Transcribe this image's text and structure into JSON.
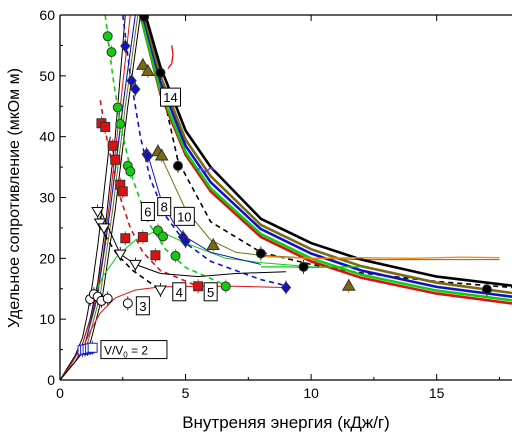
{
  "chart_data": {
    "type": "line",
    "title": "",
    "xlabel": "Внутреняя энергия (кДж/г)",
    "ylabel": "Удельное сопротивление (мкОм м)",
    "xlim": [
      0,
      18
    ],
    "ylim": [
      0,
      60
    ],
    "xticks": [
      "0",
      "5",
      "10",
      "15"
    ],
    "yticks": [
      "0",
      "10",
      "20",
      "30",
      "40",
      "50",
      "60"
    ],
    "grid": false,
    "legend": "none",
    "labels": [
      "2",
      "3",
      "4",
      "5",
      "6",
      "8",
      "10",
      "14"
    ],
    "label_prefix": "V/V",
    "label_subscript": "0",
    "label_suffix": " = 2",
    "series": [
      {
        "label": "2",
        "color": "#1f1fcc",
        "marker": "square-open",
        "x": [
          0.9,
          1.0,
          1.1,
          1.2,
          1.3
        ],
        "y": [
          4.9,
          5.0,
          5.1,
          5.2,
          5.3
        ]
      },
      {
        "label": "3",
        "color": "#000000",
        "marker": "circle-open",
        "x": [
          1.2,
          1.35,
          1.5,
          1.65,
          1.9,
          2.7
        ],
        "y": [
          13.3,
          14.1,
          13.7,
          13.0,
          13.4,
          12.6
        ]
      },
      {
        "label": "4",
        "color": "#000000",
        "marker": "triangle-down-open",
        "x": [
          1.5,
          1.6,
          1.75,
          2.4,
          3.0,
          4.0
        ],
        "y": [
          27.7,
          25.8,
          25.0,
          20.7,
          19.0,
          14.8
        ]
      },
      {
        "label": "5",
        "color": "#dd1111",
        "marker": "square",
        "x": [
          1.65,
          1.8,
          2.1,
          2.2,
          2.4,
          2.5,
          2.6,
          3.3,
          3.8,
          5.5
        ],
        "y": [
          42.2,
          41.6,
          38.5,
          36.2,
          32.1,
          31.0,
          23.3,
          23.5,
          20.5,
          15.4
        ]
      },
      {
        "label": "6",
        "color": "#11cc11",
        "marker": "circle",
        "x": [
          1.9,
          2.05,
          2.3,
          2.4,
          2.7,
          2.8,
          3.9,
          4.1,
          4.6,
          6.6
        ],
        "y": [
          56.5,
          53.9,
          44.8,
          42.1,
          35.2,
          34.3,
          24.6,
          23.6,
          20.4,
          15.4
        ]
      },
      {
        "label": "8",
        "color": "#1111cc",
        "marker": "diamond",
        "x": [
          2.6,
          2.85,
          3.0,
          3.45,
          3.5,
          4.9,
          5.0,
          9.0
        ],
        "y": [
          54.9,
          49.2,
          47.8,
          37.1,
          36.8,
          23.5,
          22.8,
          15.2
        ]
      },
      {
        "label": "10",
        "color": "#7a6a10",
        "marker": "triangle",
        "x": [
          3.3,
          3.5,
          3.9,
          4.05,
          6.1,
          11.5
        ],
        "y": [
          51.8,
          50.8,
          37.6,
          36.9,
          22.2,
          15.5
        ]
      },
      {
        "label": "14",
        "color": "#000000",
        "marker": "circle",
        "x": [
          3.35,
          4.0,
          4.7,
          8.0,
          9.7,
          17.0
        ],
        "y": [
          59.7,
          50.5,
          35.2,
          20.8,
          18.6,
          14.9
        ]
      }
    ],
    "fit_curves": [
      {
        "color": "#dd1111",
        "x": [
          3.2,
          4,
          5,
          6,
          8,
          10,
          12,
          15,
          18
        ],
        "y": [
          60,
          47,
          37,
          31,
          23.5,
          19.5,
          16.8,
          14.2,
          12.6
        ]
      },
      {
        "color": "#11cc11",
        "x": [
          3.2,
          4,
          5,
          6,
          8,
          10,
          12,
          15,
          18
        ],
        "y": [
          60,
          47.5,
          37.5,
          31.5,
          24,
          20,
          17.3,
          14.7,
          13.1
        ]
      },
      {
        "color": "#1111cc",
        "x": [
          3.3,
          4,
          5,
          6,
          8,
          10,
          12,
          15,
          18
        ],
        "y": [
          60,
          49,
          38.5,
          32.5,
          24.8,
          20.8,
          18,
          15.3,
          13.7
        ]
      },
      {
        "color": "#7a6a10",
        "x": [
          3.35,
          4,
          5,
          6,
          8,
          10,
          12,
          15,
          18
        ],
        "y": [
          60,
          50,
          39.5,
          33.5,
          25.5,
          21.5,
          18.7,
          16,
          14.3
        ]
      },
      {
        "color": "#000000",
        "x": [
          3.4,
          4,
          5,
          6,
          8,
          10,
          12,
          15,
          18
        ],
        "y": [
          60,
          51.5,
          41,
          35,
          26.5,
          22.5,
          19.8,
          17,
          15.5
        ]
      }
    ],
    "dashed_curves": [
      {
        "color": "#000000",
        "x": [
          3.3,
          3.6,
          4.0,
          4.7,
          6,
          8,
          10,
          12,
          15,
          18
        ],
        "y": [
          60,
          55,
          49,
          36,
          26,
          21,
          19,
          17.6,
          16.2,
          15.2
        ]
      },
      {
        "color": "#1111cc",
        "x": [
          2.5,
          2.8,
          3.2,
          3.6,
          4.2,
          5,
          6,
          8,
          9
        ],
        "y": [
          60,
          50,
          40,
          33,
          27,
          22.5,
          19.5,
          16.5,
          15.5
        ]
      },
      {
        "color": "#11cc11",
        "x": [
          1.8,
          2.1,
          2.4,
          2.9,
          3.5,
          4.2,
          5,
          6.6
        ],
        "y": [
          60,
          50,
          42,
          33,
          26,
          21.5,
          18.5,
          15.6
        ]
      },
      {
        "color": "#dd1111",
        "x": [
          1.6,
          1.85,
          2.1,
          2.4,
          2.8,
          3.3,
          4,
          5.5
        ],
        "y": [
          46,
          40,
          35,
          30,
          25,
          21,
          18,
          15.4
        ]
      },
      {
        "color": "#000000",
        "x": [
          1.4,
          1.6,
          1.9,
          2.3,
          2.9,
          4.0
        ],
        "y": [
          28,
          25.5,
          23,
          20.5,
          18,
          14.8
        ]
      }
    ],
    "rise_curves": [
      {
        "color": "#000000",
        "x": [
          0,
          0.3,
          0.6,
          0.9,
          1.1,
          1.3,
          1.5,
          1.7,
          2.0
        ],
        "y": [
          0,
          2,
          4,
          7,
          11,
          16,
          22,
          29,
          40
        ]
      },
      {
        "color": "#000000",
        "x": [
          0,
          0.5,
          0.9,
          1.2,
          1.5,
          1.8,
          2.2,
          2.6
        ],
        "y": [
          0,
          3,
          6,
          10,
          16,
          25,
          40,
          60
        ]
      },
      {
        "color": "#dd1111",
        "x": [
          0,
          0.5,
          0.9,
          1.3,
          1.7,
          2.0,
          2.4,
          2.8
        ],
        "y": [
          0,
          3,
          6,
          11,
          20,
          30,
          45,
          60
        ]
      },
      {
        "color": "#11cc11",
        "x": [
          0,
          0.6,
          1.0,
          1.4,
          1.8,
          2.2,
          2.6,
          3.0
        ],
        "y": [
          0,
          3,
          6,
          12,
          22,
          34,
          48,
          60
        ]
      },
      {
        "color": "#1111cc",
        "x": [
          0,
          0.6,
          1.0,
          1.5,
          2.0,
          2.5,
          3.0
        ],
        "y": [
          0,
          3,
          6,
          14,
          28,
          45,
          60
        ]
      },
      {
        "color": "#7a6a10",
        "x": [
          0,
          0.6,
          1.1,
          1.6,
          2.1,
          2.6,
          3.1
        ],
        "y": [
          0,
          3,
          6,
          14,
          28,
          45,
          60
        ]
      },
      {
        "color": "#000000",
        "x": [
          0,
          0.6,
          1.2,
          1.7,
          2.2,
          2.7,
          3.2
        ],
        "y": [
          0,
          3,
          6,
          14,
          28,
          45,
          60
        ]
      }
    ],
    "plateau_curves": [
      {
        "color": "#dd1111",
        "x": [
          0.9,
          1.2,
          1.6,
          2.2,
          3,
          4,
          5.5,
          7,
          9
        ],
        "y": [
          5,
          8,
          11,
          13.5,
          14.8,
          15.3,
          15.4,
          15.4,
          15.2
        ]
      },
      {
        "color": "#11cc11",
        "x": [
          1.3,
          1.7,
          2.3,
          3,
          3.9,
          5,
          6.6,
          8,
          10,
          12
        ],
        "y": [
          13,
          17,
          20.5,
          23,
          24.6,
          22.5,
          20,
          19.3,
          18.6,
          18.6
        ]
      },
      {
        "color": "#1111cc",
        "x": [
          3.5,
          4,
          4.5,
          5,
          6,
          8
        ],
        "y": [
          37,
          30,
          26,
          23.5,
          21,
          19
        ]
      },
      {
        "color": "#7a6a10",
        "x": [
          4.0,
          5,
          6,
          7,
          8,
          10,
          12,
          17.5
        ],
        "y": [
          37,
          28,
          23,
          21,
          20.5,
          20,
          19.8,
          19.8
        ]
      },
      {
        "color": "#000000",
        "x": [
          1.6,
          2.4,
          3.0,
          4.0,
          5.5,
          7,
          9
        ],
        "y": [
          28,
          20.7,
          19,
          17.5,
          17,
          17.5,
          17.8
        ]
      }
    ],
    "noisy_tails": [
      {
        "color": "#dd1111",
        "x": [
          4.3,
          4.45,
          4.5,
          4.45
        ],
        "y": [
          51.2,
          52.0,
          53.5,
          55.0
        ]
      },
      {
        "color": "#6a33ff",
        "x": [
          5.4,
          5.6,
          5.8,
          6.0,
          6.2
        ],
        "y": [
          34.5,
          34.8,
          34.2,
          34.9,
          34.4
        ]
      },
      {
        "color": "#ff8800",
        "x": [
          8,
          10,
          12,
          14,
          16,
          17.5
        ],
        "y": [
          20.3,
          20.0,
          20.1,
          20.0,
          20.2,
          20.1
        ]
      },
      {
        "color": "#11cc11",
        "x": [
          8,
          9,
          10,
          11,
          12
        ],
        "y": [
          18.6,
          18.6,
          18.5,
          18.6,
          18.6
        ]
      }
    ]
  },
  "curve_labels": [
    {
      "text": "3",
      "x": 3.3,
      "y": 12.2
    },
    {
      "text": "4",
      "x": 4.75,
      "y": 14.5
    },
    {
      "text": "5",
      "x": 6.0,
      "y": 14.5
    },
    {
      "text": "6",
      "x": 3.5,
      "y": 27.7
    },
    {
      "text": "8",
      "x": 4.15,
      "y": 28.5
    },
    {
      "text": "10",
      "x": 4.95,
      "y": 26.9
    },
    {
      "text": "14",
      "x": 4.4,
      "y": 46.5
    }
  ]
}
